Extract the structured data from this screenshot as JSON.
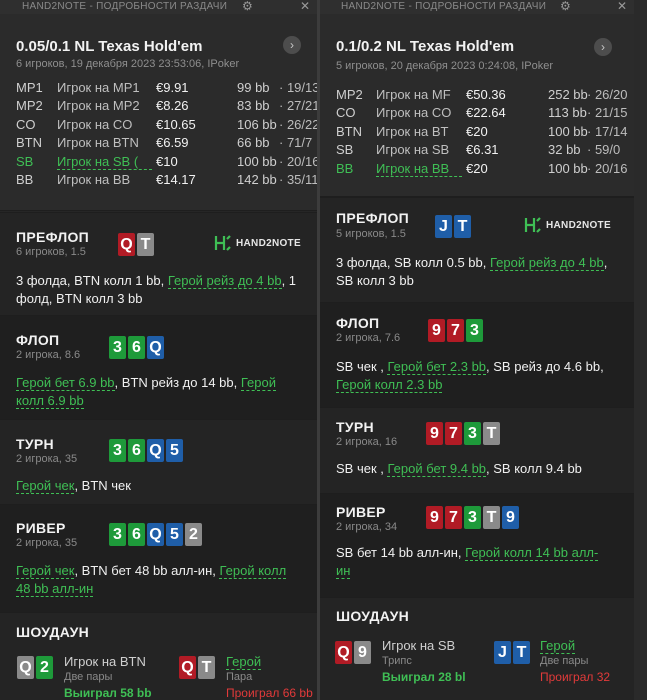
{
  "left": {
    "titlebar": {
      "title": "HAND2NOTE - ПОДРОБНОСТИ РАЗДАЧИ",
      "gear": "gear-icon",
      "close": "close-icon"
    },
    "game": {
      "title": "0.05/0.1 NL Texas Hold'em",
      "info": "6 игроков, 19 декабря 2023 23:53:06, IPoker"
    },
    "players": [
      {
        "pos": "MP1",
        "name": "Игрок на MP1",
        "stack": "€9.91",
        "bb": "99 bb",
        "stat": "· 19/13",
        "hero": false
      },
      {
        "pos": "MP2",
        "name": "Игрок на MP2",
        "stack": "€8.26",
        "bb": "83 bb",
        "stat": "· 27/21",
        "hero": false
      },
      {
        "pos": "CO",
        "name": "Игрок на CO",
        "stack": "€10.65",
        "bb": "106 bb",
        "stat": "· 26/22",
        "hero": false
      },
      {
        "pos": "BTN",
        "name": "Игрок на BTN",
        "stack": "€6.59",
        "bb": "66 bb",
        "stat": "· 71/7",
        "hero": false
      },
      {
        "pos": "SB",
        "name": "Игрок на SB (",
        "stack": "€10",
        "bb": "100 bb",
        "stat": "· 20/16",
        "hero": true
      },
      {
        "pos": "BB",
        "name": "Игрок на BB",
        "stack": "€14.17",
        "bb": "142 bb",
        "stat": "· 35/11",
        "hero": false
      }
    ],
    "preflop": {
      "title": "ПРЕФЛОП",
      "sub": "6 игроков, 1.5",
      "cards": [
        {
          "r": "Q",
          "c": "red"
        },
        {
          "r": "T",
          "c": "gray"
        }
      ],
      "logo": "HAND2NOTE",
      "lines": [
        [
          {
            "t": "3 фолда, BTN колл 1 bb, ",
            "g": false
          },
          {
            "t": "Герой рейз до 4 bb",
            "g": true
          },
          {
            "t": ", 1",
            "g": false
          }
        ],
        [
          {
            "t": "фолд, BTN колл 3 bb",
            "g": false
          }
        ]
      ]
    },
    "flop": {
      "title": "ФЛОП",
      "sub": "2 игрока, 8.6",
      "cards": [
        {
          "r": "3",
          "c": "green"
        },
        {
          "r": "6",
          "c": "green"
        },
        {
          "r": "Q",
          "c": "blue"
        }
      ],
      "lines": [
        [
          {
            "t": "Герой бет 6.9 bb",
            "g": true
          },
          {
            "t": ", BTN рейз до 14 bb, ",
            "g": false
          },
          {
            "t": "Герой",
            "g": true
          }
        ],
        [
          {
            "t": "колл 6.9 bb",
            "g": true
          }
        ]
      ]
    },
    "turn": {
      "title": "ТУРН",
      "sub": "2 игрока, 35",
      "cards": [
        {
          "r": "3",
          "c": "green"
        },
        {
          "r": "6",
          "c": "green"
        },
        {
          "r": "Q",
          "c": "blue"
        },
        {
          "r": "5",
          "c": "blue"
        }
      ],
      "lines": [
        [
          {
            "t": "Герой чек",
            "g": true
          },
          {
            "t": ", BTN чек",
            "g": false
          }
        ]
      ]
    },
    "river": {
      "title": "РИВЕР",
      "sub": "2 игрока, 35",
      "cards": [
        {
          "r": "3",
          "c": "green"
        },
        {
          "r": "6",
          "c": "green"
        },
        {
          "r": "Q",
          "c": "blue"
        },
        {
          "r": "5",
          "c": "blue"
        },
        {
          "r": "2",
          "c": "gray"
        }
      ],
      "lines": [
        [
          {
            "t": "Герой чек",
            "g": true
          },
          {
            "t": ", BTN бет 48 bb алл-ин, ",
            "g": false
          },
          {
            "t": "Герой колл",
            "g": true
          }
        ],
        [
          {
            "t": "48 bb алл-ин",
            "g": true
          }
        ]
      ]
    },
    "showdown": {
      "title": "ШОУДАУН",
      "a": {
        "cards": [
          {
            "r": "Q",
            "c": "gray"
          },
          {
            "r": "2",
            "c": "green"
          }
        ],
        "name": "Игрок на BTN",
        "hand": "Две пары",
        "result": "Выиграл 58 bb",
        "win": true
      },
      "b": {
        "cards": [
          {
            "r": "Q",
            "c": "red"
          },
          {
            "r": "T",
            "c": "gray"
          }
        ],
        "name": "Герой",
        "hand": "Пара",
        "result": "Проиграл 66 bb",
        "win": false
      }
    }
  },
  "right": {
    "titlebar": {
      "title": "HAND2NOTE - ПОДРОБНОСТИ РАЗДАЧИ",
      "gear": "gear-icon",
      "close": "close-icon"
    },
    "game": {
      "title": "0.1/0.2 NL Texas Hold'em",
      "info": "5 игроков, 20 декабря 2023 0:24:08, IPoker"
    },
    "players": [
      {
        "pos": "MP2",
        "name": "Игрок на MF",
        "stack": "€50.36",
        "bb": "252 bb",
        "stat": "· 26/20",
        "hero": false
      },
      {
        "pos": "CO",
        "name": "Игрок на CO",
        "stack": "€22.64",
        "bb": "113 bb",
        "stat": "· 21/15",
        "hero": false
      },
      {
        "pos": "BTN",
        "name": "Игрок на BT",
        "stack": "€20",
        "bb": "100 bb",
        "stat": "· 17/14",
        "hero": false
      },
      {
        "pos": "SB",
        "name": "Игрок на SB",
        "stack": "€6.31",
        "bb": "32 bb",
        "stat": "· 59/0",
        "hero": false
      },
      {
        "pos": "BB",
        "name": "Игрок на BB",
        "stack": "€20",
        "bb": "100 bb",
        "stat": "· 20/16",
        "hero": true
      }
    ],
    "preflop": {
      "title": "ПРЕФЛОП",
      "sub": "5 игроков, 1.5",
      "cards": [
        {
          "r": "J",
          "c": "blue"
        },
        {
          "r": "T",
          "c": "blue"
        }
      ],
      "logo": "HAND2NOTE",
      "lines": [
        [
          {
            "t": "3 фолда, SB колл 0.5 bb, ",
            "g": false
          },
          {
            "t": "Герой рейз до 4 bb",
            "g": true
          },
          {
            "t": ",",
            "g": false
          }
        ],
        [
          {
            "t": "SB колл 3 bb",
            "g": false
          }
        ]
      ]
    },
    "flop": {
      "title": "ФЛОП",
      "sub": "2 игрока, 7.6",
      "cards": [
        {
          "r": "9",
          "c": "red"
        },
        {
          "r": "7",
          "c": "red"
        },
        {
          "r": "3",
          "c": "green"
        }
      ],
      "lines": [
        [
          {
            "t": "SB чек , ",
            "g": false
          },
          {
            "t": "Герой бет 2.3 bb",
            "g": true
          },
          {
            "t": ", SB рейз до 4.6 bb,",
            "g": false
          }
        ],
        [
          {
            "t": "Герой колл 2.3 bb",
            "g": true
          }
        ]
      ]
    },
    "turn": {
      "title": "ТУРН",
      "sub": "2 игрока, 16",
      "cards": [
        {
          "r": "9",
          "c": "red"
        },
        {
          "r": "7",
          "c": "red"
        },
        {
          "r": "3",
          "c": "green"
        },
        {
          "r": "T",
          "c": "gray"
        }
      ],
      "lines": [
        [
          {
            "t": "SB чек , ",
            "g": false
          },
          {
            "t": "Герой бет 9.4 bb",
            "g": true
          },
          {
            "t": ", SB колл 9.4 bb",
            "g": false
          }
        ]
      ]
    },
    "river": {
      "title": "РИВЕР",
      "sub": "2 игрока, 34",
      "cards": [
        {
          "r": "9",
          "c": "red"
        },
        {
          "r": "7",
          "c": "red"
        },
        {
          "r": "3",
          "c": "green"
        },
        {
          "r": "T",
          "c": "gray"
        },
        {
          "r": "9",
          "c": "blue"
        }
      ],
      "lines": [
        [
          {
            "t": "SB бет 14 bb алл-ин, ",
            "g": false
          },
          {
            "t": "Герой колл 14 bb алл-",
            "g": true
          }
        ],
        [
          {
            "t": "ин",
            "g": true
          }
        ]
      ]
    },
    "showdown": {
      "title": "ШОУДАУН",
      "a": {
        "cards": [
          {
            "r": "Q",
            "c": "red"
          },
          {
            "r": "9",
            "c": "gray"
          }
        ],
        "name": "Игрок на SB",
        "hand": "Трипс",
        "result": "Выиграл 28 bl",
        "win": true
      },
      "b": {
        "cards": [
          {
            "r": "J",
            "c": "blue"
          },
          {
            "r": "T",
            "c": "blue"
          }
        ],
        "name": "Герой",
        "hand": "Две пары",
        "result": "Проиграл 32",
        "win": false
      }
    }
  }
}
